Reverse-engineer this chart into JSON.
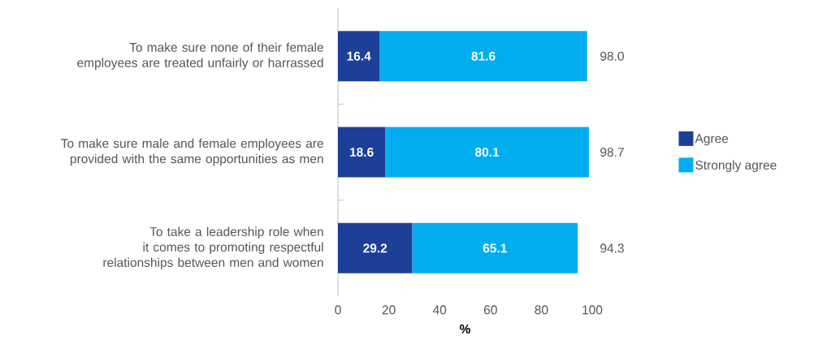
{
  "chart_data": {
    "type": "bar",
    "orientation": "horizontal",
    "stacked": true,
    "xlabel": "%",
    "categories": [
      "To make sure none of their female employees are treated unfairly or harrassed",
      "To make sure male and female employees are provided with the same opportunities as men",
      "To take a leadership role when it comes to promoting respectful relationships between men and women"
    ],
    "series": [
      {
        "name": "Agree",
        "color": "#1e3f98",
        "values": [
          16.4,
          18.6,
          29.2
        ]
      },
      {
        "name": "Strongly agree",
        "color": "#00aeef",
        "values": [
          81.6,
          80.1,
          65.1
        ]
      }
    ],
    "totals": [
      "98.0",
      "98.7",
      "94.3"
    ],
    "data_labels": true,
    "xlim": [
      0,
      100
    ],
    "xticks": [
      0,
      20,
      40,
      60,
      80,
      100
    ],
    "legend": "right"
  }
}
